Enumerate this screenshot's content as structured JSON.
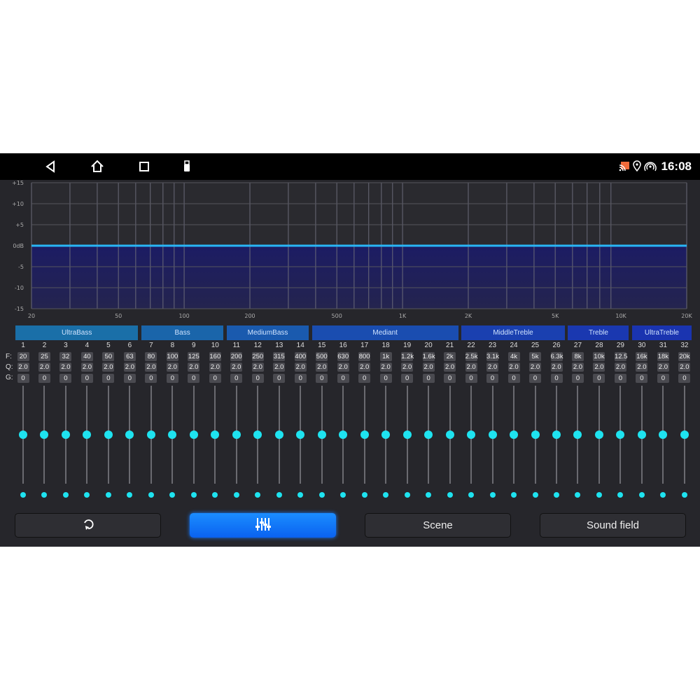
{
  "status_bar": {
    "time": "16:08",
    "nav_icons": [
      "back-icon",
      "home-icon",
      "recents-icon",
      "usb-icon"
    ],
    "status_icons": [
      "cast-icon",
      "location-icon",
      "hotspot-icon"
    ]
  },
  "chart_data": {
    "type": "area",
    "x_scale": "log",
    "xlim": [
      20,
      20000
    ],
    "ylim": [
      -15,
      15
    ],
    "y_ticks": [
      "+15",
      "+10",
      "+5",
      "0dB",
      "-5",
      "-10",
      "-15"
    ],
    "x_ticks": [
      {
        "value": 20,
        "label": "20"
      },
      {
        "value": 50,
        "label": "50"
      },
      {
        "value": 100,
        "label": "100"
      },
      {
        "value": 200,
        "label": "200"
      },
      {
        "value": 500,
        "label": "500"
      },
      {
        "value": 1000,
        "label": "1K"
      },
      {
        "value": 2000,
        "label": "2K"
      },
      {
        "value": 5000,
        "label": "5K"
      },
      {
        "value": 10000,
        "label": "10K"
      },
      {
        "value": 20000,
        "label": "20K"
      }
    ],
    "grid": true,
    "curve_gain_db": 0,
    "line_color": "#29b6f6",
    "fill_color": "#1e1e5e"
  },
  "band_groups": [
    {
      "label": "UltraBass",
      "from": 1,
      "to": 6,
      "color": "#1a6fa8"
    },
    {
      "label": "Bass",
      "from": 7,
      "to": 10,
      "color": "#1a65aa"
    },
    {
      "label": "MediumBass",
      "from": 11,
      "to": 14,
      "color": "#1a5aae"
    },
    {
      "label": "Mediant",
      "from": 15,
      "to": 21,
      "color": "#1a4db0"
    },
    {
      "label": "MiddleTreble",
      "from": 22,
      "to": 26,
      "color": "#1a40b0"
    },
    {
      "label": "Treble",
      "from": 27,
      "to": 29,
      "color": "#1a38b0"
    },
    {
      "label": "UltraTreble",
      "from": 30,
      "to": 32,
      "color": "#1a34b0"
    }
  ],
  "row_labels": {
    "f": "F:",
    "q": "Q:",
    "g": "G:"
  },
  "bands": [
    {
      "n": "1",
      "f": "20",
      "q": "2.0",
      "g": "0"
    },
    {
      "n": "2",
      "f": "25",
      "q": "2.0",
      "g": "0"
    },
    {
      "n": "3",
      "f": "32",
      "q": "2.0",
      "g": "0"
    },
    {
      "n": "4",
      "f": "40",
      "q": "2.0",
      "g": "0"
    },
    {
      "n": "5",
      "f": "50",
      "q": "2.0",
      "g": "0"
    },
    {
      "n": "6",
      "f": "63",
      "q": "2.0",
      "g": "0"
    },
    {
      "n": "7",
      "f": "80",
      "q": "2.0",
      "g": "0"
    },
    {
      "n": "8",
      "f": "100",
      "q": "2.0",
      "g": "0"
    },
    {
      "n": "9",
      "f": "125",
      "q": "2.0",
      "g": "0"
    },
    {
      "n": "10",
      "f": "160",
      "q": "2.0",
      "g": "0"
    },
    {
      "n": "11",
      "f": "200",
      "q": "2.0",
      "g": "0"
    },
    {
      "n": "12",
      "f": "250",
      "q": "2.0",
      "g": "0"
    },
    {
      "n": "13",
      "f": "315",
      "q": "2.0",
      "g": "0"
    },
    {
      "n": "14",
      "f": "400",
      "q": "2.0",
      "g": "0"
    },
    {
      "n": "15",
      "f": "500",
      "q": "2.0",
      "g": "0"
    },
    {
      "n": "16",
      "f": "630",
      "q": "2.0",
      "g": "0"
    },
    {
      "n": "17",
      "f": "800",
      "q": "2.0",
      "g": "0"
    },
    {
      "n": "18",
      "f": "1k",
      "q": "2.0",
      "g": "0"
    },
    {
      "n": "19",
      "f": "1.2k",
      "q": "2.0",
      "g": "0"
    },
    {
      "n": "20",
      "f": "1.6k",
      "q": "2.0",
      "g": "0"
    },
    {
      "n": "21",
      "f": "2k",
      "q": "2.0",
      "g": "0"
    },
    {
      "n": "22",
      "f": "2.5k",
      "q": "2.0",
      "g": "0"
    },
    {
      "n": "23",
      "f": "3.1k",
      "q": "2.0",
      "g": "0"
    },
    {
      "n": "24",
      "f": "4k",
      "q": "2.0",
      "g": "0"
    },
    {
      "n": "25",
      "f": "5k",
      "q": "2.0",
      "g": "0"
    },
    {
      "n": "26",
      "f": "6.3k",
      "q": "2.0",
      "g": "0"
    },
    {
      "n": "27",
      "f": "8k",
      "q": "2.0",
      "g": "0"
    },
    {
      "n": "28",
      "f": "10k",
      "q": "2.0",
      "g": "0"
    },
    {
      "n": "29",
      "f": "12.5",
      "q": "2.0",
      "g": "0"
    },
    {
      "n": "30",
      "f": "16k",
      "q": "2.0",
      "g": "0"
    },
    {
      "n": "31",
      "f": "18k",
      "q": "2.0",
      "g": "0"
    },
    {
      "n": "32",
      "f": "20k",
      "q": "2.0",
      "g": "0"
    }
  ],
  "buttons": [
    {
      "id": "reset",
      "label": "",
      "icon": "reset-icon",
      "active": false
    },
    {
      "id": "eq",
      "label": "",
      "icon": "equalizer-icon",
      "active": true
    },
    {
      "id": "scene",
      "label": "Scene",
      "active": false
    },
    {
      "id": "sound_field",
      "label": "Sound field",
      "active": false
    }
  ]
}
